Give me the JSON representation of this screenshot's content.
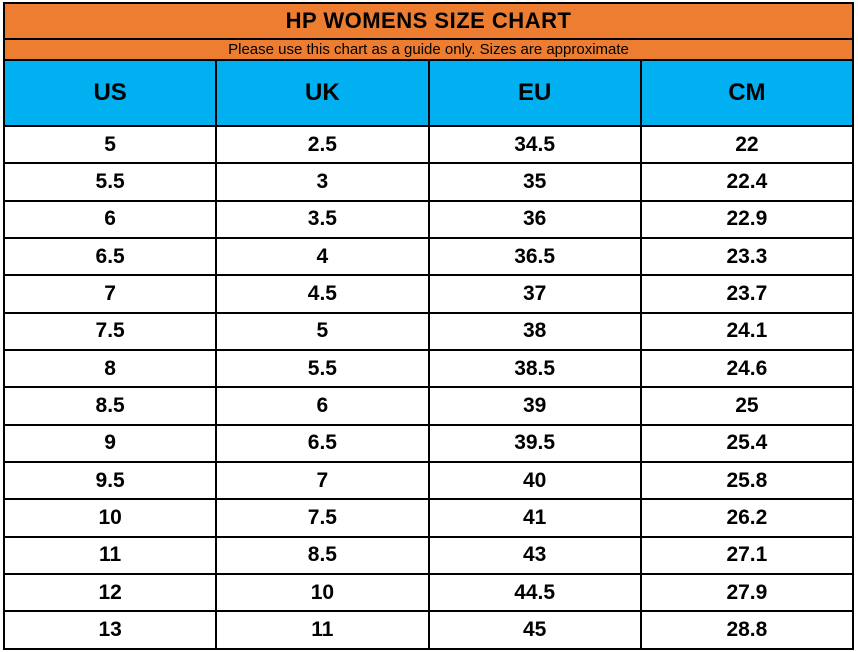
{
  "title": "HP WOMENS SIZE CHART",
  "subtitle": "Please use this chart as a guide only. Sizes are approximate",
  "colors": {
    "title_band": "#ED7D31",
    "header_band": "#00B0F0",
    "grid_border": "#000000",
    "row_background": "#FFFFFF",
    "text": "#000000"
  },
  "chart_data": {
    "type": "table",
    "title": "HP WOMENS SIZE CHART",
    "subtitle": "Please use this chart as a guide only. Sizes are approximate",
    "columns": [
      "US",
      "UK",
      "EU",
      "CM"
    ],
    "rows": [
      [
        "5",
        "2.5",
        "34.5",
        "22"
      ],
      [
        "5.5",
        "3",
        "35",
        "22.4"
      ],
      [
        "6",
        "3.5",
        "36",
        "22.9"
      ],
      [
        "6.5",
        "4",
        "36.5",
        "23.3"
      ],
      [
        "7",
        "4.5",
        "37",
        "23.7"
      ],
      [
        "7.5",
        "5",
        "38",
        "24.1"
      ],
      [
        "8",
        "5.5",
        "38.5",
        "24.6"
      ],
      [
        "8.5",
        "6",
        "39",
        "25"
      ],
      [
        "9",
        "6.5",
        "39.5",
        "25.4"
      ],
      [
        "9.5",
        "7",
        "40",
        "25.8"
      ],
      [
        "10",
        "7.5",
        "41",
        "26.2"
      ],
      [
        "11",
        "8.5",
        "43",
        "27.1"
      ],
      [
        "12",
        "10",
        "44.5",
        "27.9"
      ],
      [
        "13",
        "11",
        "45",
        "28.8"
      ]
    ]
  }
}
